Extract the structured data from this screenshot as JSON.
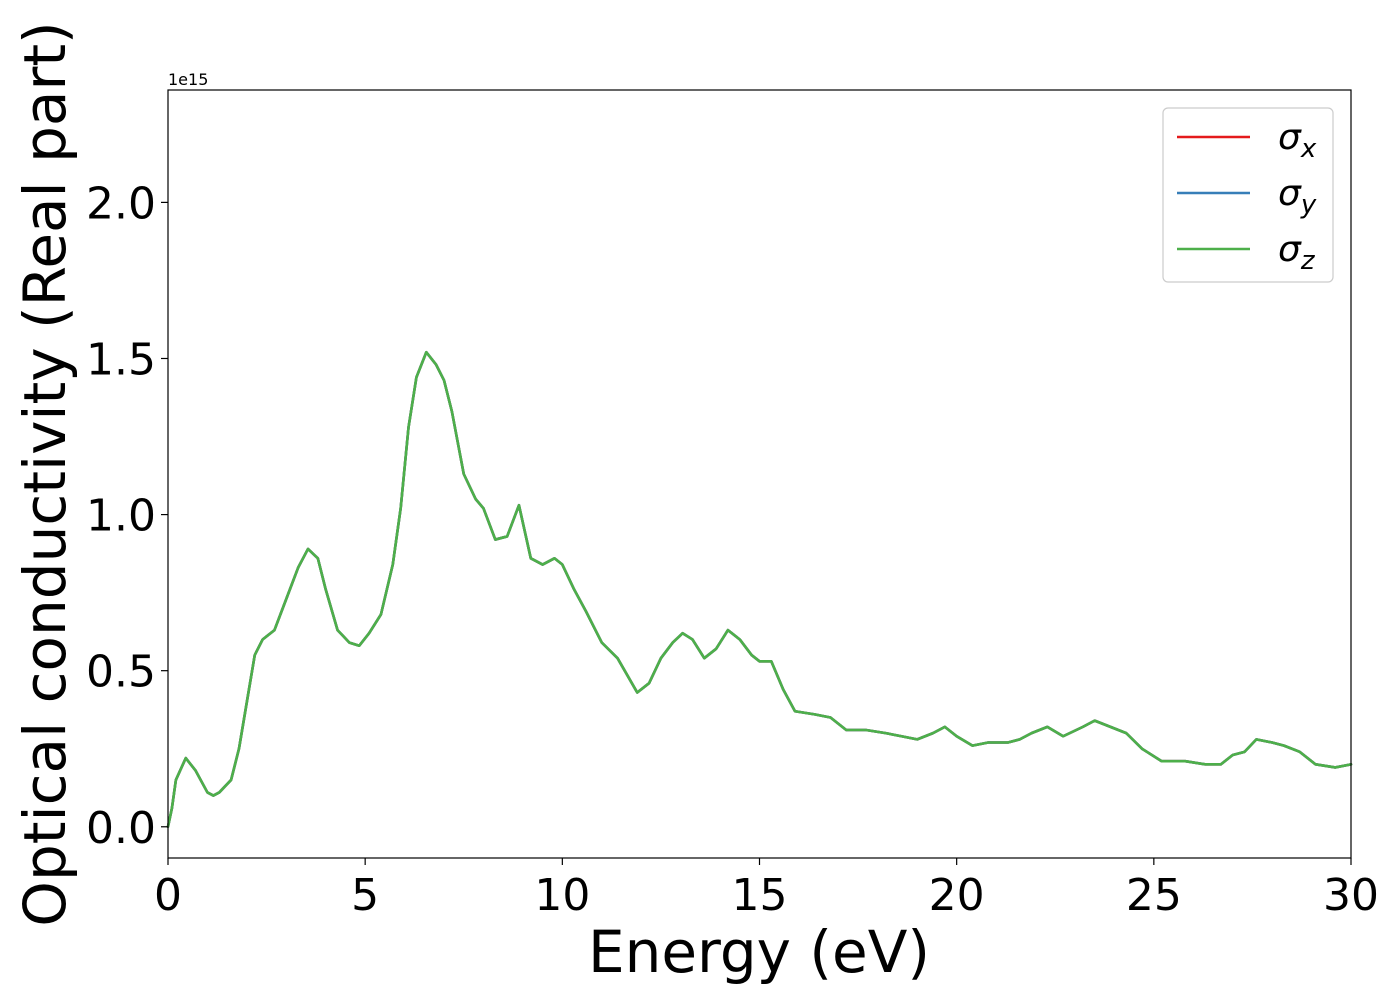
{
  "chart_data": {
    "type": "line",
    "title": "",
    "xlabel": "Energy (eV)",
    "ylabel": "Optical conductivity (Real part)",
    "y_offset_label": "1e15",
    "xlim": [
      0,
      30
    ],
    "ylim": [
      -0.1,
      2.36
    ],
    "xticks": [
      0,
      5,
      10,
      15,
      20,
      25,
      30
    ],
    "xtick_labels": [
      "0",
      "5",
      "10",
      "15",
      "20",
      "25",
      "30"
    ],
    "yticks": [
      0.0,
      0.5,
      1.0,
      1.5,
      2.0
    ],
    "ytick_labels": [
      "0.0",
      "0.5",
      "1.0",
      "1.5",
      "2.0"
    ],
    "grid": false,
    "legend_position": "top-right",
    "series": [
      {
        "name": "σx",
        "symbol": "σ",
        "subscript": "x",
        "color": "#e41a1c"
      },
      {
        "name": "σy",
        "symbol": "σ",
        "subscript": "y",
        "color": "#377eb8"
      },
      {
        "name": "σz",
        "symbol": "σ",
        "subscript": "z",
        "color": "#4daf4a"
      }
    ],
    "x": [
      0,
      0.1,
      0.2,
      0.45,
      0.7,
      1.0,
      1.15,
      1.3,
      1.6,
      1.8,
      2.0,
      2.2,
      2.4,
      2.7,
      3.0,
      3.3,
      3.55,
      3.8,
      4.0,
      4.3,
      4.6,
      4.85,
      5.1,
      5.4,
      5.7,
      5.9,
      6.1,
      6.3,
      6.55,
      6.8,
      7.0,
      7.2,
      7.5,
      7.8,
      8.0,
      8.3,
      8.6,
      8.9,
      9.2,
      9.5,
      9.8,
      10.0,
      10.3,
      10.6,
      11.0,
      11.4,
      11.9,
      12.2,
      12.5,
      12.8,
      13.05,
      13.3,
      13.6,
      13.9,
      14.2,
      14.5,
      14.8,
      15.0,
      15.3,
      15.6,
      15.9,
      16.4,
      16.8,
      17.2,
      17.7,
      18.2,
      18.6,
      19.0,
      19.4,
      19.7,
      20.0,
      20.4,
      20.8,
      21.3,
      21.6,
      21.9,
      22.3,
      22.7,
      23.2,
      23.5,
      23.9,
      24.3,
      24.7,
      25.2,
      25.8,
      26.3,
      26.7,
      27.0,
      27.3,
      27.6,
      28.0,
      28.3,
      28.7,
      29.1,
      29.6,
      30.0
    ],
    "y": [
      0.0,
      0.06,
      0.15,
      0.22,
      0.18,
      0.11,
      0.1,
      0.11,
      0.15,
      0.25,
      0.4,
      0.55,
      0.6,
      0.63,
      0.73,
      0.83,
      0.89,
      0.86,
      0.76,
      0.63,
      0.59,
      0.58,
      0.62,
      0.68,
      0.84,
      1.02,
      1.28,
      1.44,
      1.52,
      1.48,
      1.43,
      1.33,
      1.13,
      1.05,
      1.02,
      0.92,
      0.93,
      1.03,
      0.86,
      0.84,
      0.86,
      0.84,
      0.76,
      0.69,
      0.59,
      0.54,
      0.43,
      0.46,
      0.54,
      0.59,
      0.62,
      0.6,
      0.54,
      0.57,
      0.63,
      0.6,
      0.55,
      0.53,
      0.53,
      0.44,
      0.37,
      0.36,
      0.35,
      0.31,
      0.31,
      0.3,
      0.29,
      0.28,
      0.3,
      0.32,
      0.29,
      0.26,
      0.27,
      0.27,
      0.28,
      0.3,
      0.32,
      0.29,
      0.32,
      0.34,
      0.32,
      0.3,
      0.25,
      0.21,
      0.21,
      0.2,
      0.2,
      0.23,
      0.24,
      0.28,
      0.27,
      0.26,
      0.24,
      0.2,
      0.19,
      0.2
    ]
  }
}
